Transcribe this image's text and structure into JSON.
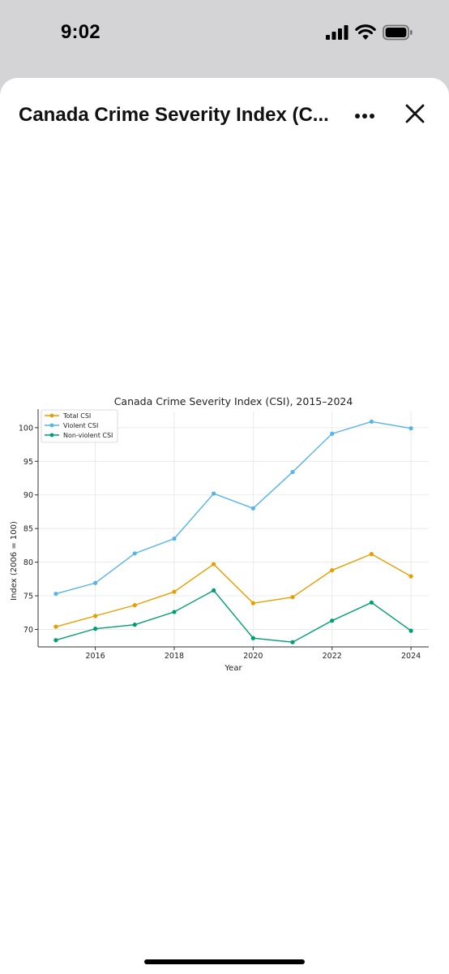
{
  "status_bar": {
    "time": "9:02",
    "icons": [
      "signal-icon",
      "wifi-icon",
      "battery-icon"
    ]
  },
  "header": {
    "title": "Canada Crime Severity Index (C...",
    "more_icon": "more-icon",
    "close_icon": "close-icon"
  },
  "chart_data": {
    "type": "line",
    "title": "Canada Crime Severity Index (CSI), 2015–2024",
    "xlabel": "Year",
    "ylabel": "Index (2006 = 100)",
    "x": [
      2015,
      2016,
      2017,
      2018,
      2019,
      2020,
      2021,
      2022,
      2023,
      2024
    ],
    "xticks": [
      2016,
      2018,
      2020,
      2022,
      2024
    ],
    "yticks": [
      70,
      75,
      80,
      85,
      90,
      95,
      100
    ],
    "xlim": [
      2014.55,
      2024.45
    ],
    "ylim": [
      67.4,
      102.4
    ],
    "grid": true,
    "legend": "top-left",
    "series": [
      {
        "name": "Total CSI",
        "color": "#E69F00",
        "values": [
          70.4,
          72.0,
          73.6,
          75.6,
          79.7,
          73.9,
          74.8,
          78.8,
          81.2,
          77.9
        ]
      },
      {
        "name": "Violent CSI",
        "color": "#56B4E9",
        "values": [
          75.3,
          76.9,
          81.3,
          83.5,
          90.2,
          88.0,
          93.4,
          99.1,
          100.9,
          99.9
        ]
      },
      {
        "name": "Non-violent CSI",
        "color": "#009E73",
        "values": [
          68.4,
          70.1,
          70.7,
          72.6,
          75.8,
          68.7,
          68.1,
          71.3,
          74.0,
          69.8
        ]
      }
    ]
  }
}
